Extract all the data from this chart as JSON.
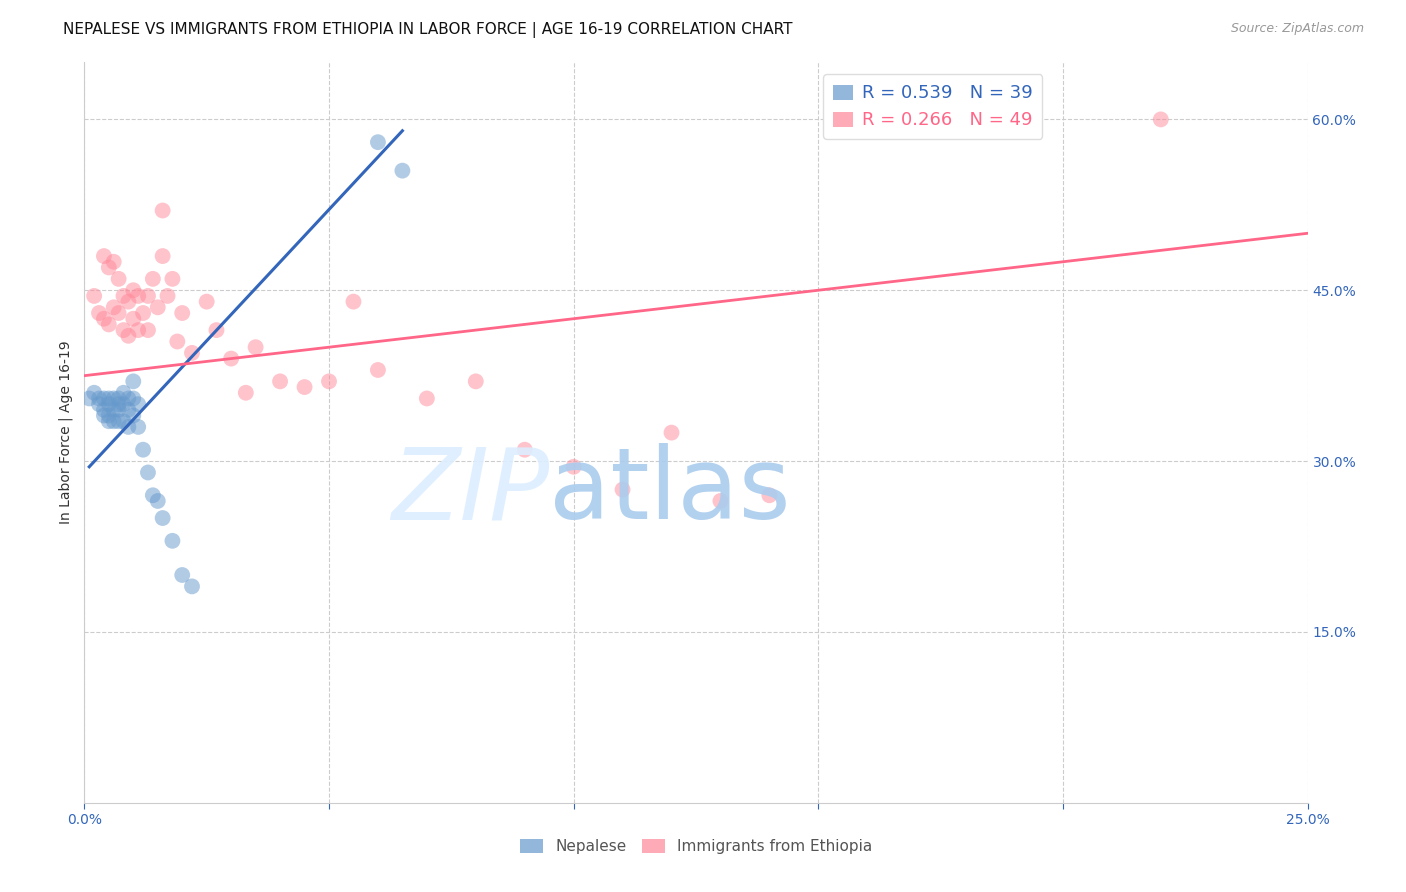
{
  "title": "NEPALESE VS IMMIGRANTS FROM ETHIOPIA IN LABOR FORCE | AGE 16-19 CORRELATION CHART",
  "source": "Source: ZipAtlas.com",
  "ylabel": "In Labor Force | Age 16-19",
  "x_min": 0.0,
  "x_max": 0.25,
  "y_min": 0.0,
  "y_max": 0.65,
  "x_ticks": [
    0.0,
    0.05,
    0.1,
    0.15,
    0.2,
    0.25
  ],
  "y_ticks_right": [
    0.15,
    0.3,
    0.45,
    0.6
  ],
  "y_tick_labels_right": [
    "15.0%",
    "30.0%",
    "45.0%",
    "60.0%"
  ],
  "blue_color": "#6699CC",
  "pink_color": "#FF8899",
  "nepalese_legend": "Nepalese",
  "ethiopia_legend": "Immigrants from Ethiopia",
  "blue_scatter_x": [
    0.001,
    0.002,
    0.003,
    0.003,
    0.004,
    0.004,
    0.004,
    0.005,
    0.005,
    0.005,
    0.005,
    0.006,
    0.006,
    0.006,
    0.007,
    0.007,
    0.007,
    0.007,
    0.008,
    0.008,
    0.008,
    0.009,
    0.009,
    0.009,
    0.01,
    0.01,
    0.01,
    0.011,
    0.011,
    0.012,
    0.013,
    0.014,
    0.015,
    0.016,
    0.018,
    0.02,
    0.022,
    0.06,
    0.065
  ],
  "blue_scatter_y": [
    0.355,
    0.36,
    0.355,
    0.35,
    0.355,
    0.345,
    0.34,
    0.355,
    0.35,
    0.34,
    0.335,
    0.355,
    0.345,
    0.335,
    0.355,
    0.35,
    0.345,
    0.335,
    0.36,
    0.35,
    0.335,
    0.355,
    0.345,
    0.33,
    0.37,
    0.355,
    0.34,
    0.35,
    0.33,
    0.31,
    0.29,
    0.27,
    0.265,
    0.25,
    0.23,
    0.2,
    0.19,
    0.58,
    0.555
  ],
  "pink_scatter_x": [
    0.002,
    0.003,
    0.004,
    0.004,
    0.005,
    0.005,
    0.006,
    0.006,
    0.007,
    0.007,
    0.008,
    0.008,
    0.009,
    0.009,
    0.01,
    0.01,
    0.011,
    0.011,
    0.012,
    0.013,
    0.013,
    0.014,
    0.015,
    0.016,
    0.016,
    0.017,
    0.018,
    0.019,
    0.02,
    0.022,
    0.025,
    0.027,
    0.03,
    0.033,
    0.035,
    0.04,
    0.045,
    0.05,
    0.055,
    0.06,
    0.07,
    0.08,
    0.09,
    0.1,
    0.11,
    0.12,
    0.13,
    0.14,
    0.22
  ],
  "pink_scatter_y": [
    0.445,
    0.43,
    0.48,
    0.425,
    0.47,
    0.42,
    0.475,
    0.435,
    0.46,
    0.43,
    0.445,
    0.415,
    0.44,
    0.41,
    0.45,
    0.425,
    0.445,
    0.415,
    0.43,
    0.445,
    0.415,
    0.46,
    0.435,
    0.52,
    0.48,
    0.445,
    0.46,
    0.405,
    0.43,
    0.395,
    0.44,
    0.415,
    0.39,
    0.36,
    0.4,
    0.37,
    0.365,
    0.37,
    0.44,
    0.38,
    0.355,
    0.37,
    0.31,
    0.295,
    0.275,
    0.325,
    0.265,
    0.27,
    0.6
  ],
  "blue_line_x": [
    0.001,
    0.065
  ],
  "blue_line_y": [
    0.295,
    0.59
  ],
  "pink_line_x": [
    0.0,
    0.25
  ],
  "pink_line_y": [
    0.375,
    0.5
  ],
  "grid_color": "#CCCCCC",
  "background_color": "#FFFFFF",
  "title_fontsize": 11,
  "axis_label_fontsize": 10,
  "tick_fontsize": 10,
  "legend_fontsize": 12
}
